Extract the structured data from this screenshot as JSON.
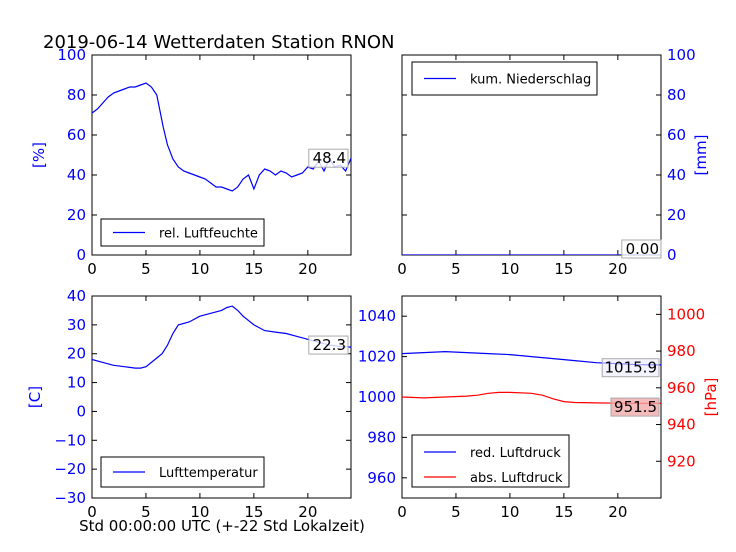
{
  "title": "2019-06-14 Wetterdaten Station RNON",
  "xlabel": "Std 00:00:00 UTC (+-22 Std Lokalzeit)",
  "colors": {
    "blue": "#0000ff",
    "red": "#ff0000",
    "black": "#000000"
  },
  "chart_data": [
    {
      "id": "humidity",
      "type": "line",
      "ylabel": "[%]",
      "xlim": [
        0,
        24
      ],
      "ylim": [
        0,
        100
      ],
      "xticks": [
        0,
        5,
        10,
        15,
        20
      ],
      "yticks": [
        0,
        20,
        40,
        60,
        80,
        100
      ],
      "legend": "rel. Luftfeuchte",
      "last_value": "48.4",
      "series": [
        {
          "name": "rel. Luftfeuchte",
          "color": "#0000ff",
          "x": [
            0,
            0.5,
            1,
            1.5,
            2,
            2.5,
            3,
            3.5,
            4,
            4.5,
            5,
            5.5,
            6,
            6.3,
            6.6,
            7,
            7.5,
            8,
            8.5,
            9,
            9.5,
            10,
            10.5,
            11,
            11.5,
            12,
            12.5,
            13,
            13.5,
            14,
            14.5,
            15,
            15.5,
            16,
            16.5,
            17,
            17.5,
            18,
            18.5,
            19,
            19.5,
            20,
            20.5,
            21,
            21.5,
            22,
            22.5,
            23,
            23.5,
            24
          ],
          "y": [
            71,
            73,
            76,
            79,
            81,
            82,
            83,
            84,
            84,
            85,
            86,
            84,
            80,
            72,
            64,
            55,
            48,
            44,
            42,
            41,
            40,
            39,
            38,
            36,
            34,
            34,
            33,
            32,
            34,
            38,
            40,
            33,
            40,
            43,
            42,
            40,
            42,
            41,
            39,
            40,
            41,
            44,
            43,
            47,
            42,
            48,
            44,
            45,
            42,
            48.4
          ]
        }
      ]
    },
    {
      "id": "precipitation",
      "type": "line",
      "ylabel": "[mm]",
      "xlim": [
        0,
        24
      ],
      "ylim": [
        0,
        100
      ],
      "xticks": [
        0,
        5,
        10,
        15,
        20
      ],
      "yticks": [
        0,
        20,
        40,
        60,
        80,
        100
      ],
      "legend": "kum. Niederschlag",
      "last_value": "0.00",
      "series": [
        {
          "name": "kum. Niederschlag",
          "color": "#0000ff",
          "x": [
            0,
            24
          ],
          "y": [
            0,
            0
          ]
        }
      ]
    },
    {
      "id": "temperature",
      "type": "line",
      "ylabel": "[C]",
      "xlim": [
        0,
        24
      ],
      "ylim": [
        -30,
        40
      ],
      "xticks": [
        0,
        5,
        10,
        15,
        20
      ],
      "yticks": [
        -30,
        -20,
        -10,
        0,
        10,
        20,
        30,
        40
      ],
      "legend": "Lufttemperatur",
      "last_value": "22.3",
      "series": [
        {
          "name": "Lufttemperatur",
          "color": "#0000ff",
          "x": [
            0,
            1,
            2,
            3,
            4,
            4.5,
            5,
            5.5,
            6,
            6.5,
            7,
            7.5,
            8,
            9,
            10,
            11,
            12,
            12.5,
            13,
            13.5,
            14,
            15,
            16,
            17,
            18,
            19,
            20,
            21,
            22,
            23,
            24
          ],
          "y": [
            18,
            17,
            16,
            15.5,
            15,
            15,
            15.5,
            17,
            18.5,
            20,
            23,
            27,
            30,
            31,
            33,
            34,
            35,
            36,
            36.5,
            35,
            33,
            30,
            28,
            27.5,
            27,
            26,
            25,
            24,
            23,
            22.5,
            22.3
          ]
        }
      ]
    },
    {
      "id": "pressure",
      "type": "line",
      "ylabel": "[hPa]",
      "xlim": [
        0,
        24
      ],
      "ylim": [
        950,
        1050
      ],
      "ylim_right": [
        900,
        1010
      ],
      "xticks": [
        0,
        5,
        10,
        15,
        20
      ],
      "yticks": [
        960,
        980,
        1000,
        1020,
        1040
      ],
      "yticks_right": [
        920,
        940,
        960,
        980,
        1000
      ],
      "legend_red": "red. Luftdruck",
      "legend_abs": "abs. Luftdruck",
      "last_value_red": "1015.9",
      "last_value_abs": "951.5",
      "series": [
        {
          "name": "red. Luftdruck",
          "color": "#0000ff",
          "axis": "left",
          "x": [
            0,
            2,
            4,
            6,
            8,
            10,
            12,
            14,
            16,
            18,
            20,
            22,
            24
          ],
          "y": [
            1021.5,
            1022,
            1022.5,
            1022,
            1021.5,
            1021,
            1020,
            1019,
            1018,
            1017,
            1016.5,
            1016,
            1015.9
          ]
        },
        {
          "name": "abs. Luftdruck",
          "color": "#ff0000",
          "axis": "right",
          "x": [
            0,
            2,
            4,
            6,
            7,
            8,
            9,
            10,
            12,
            13,
            14,
            15,
            16,
            18,
            20,
            22,
            24
          ],
          "y": [
            955,
            954.5,
            955,
            955.5,
            956,
            957,
            957.5,
            957.5,
            957,
            956,
            954,
            952.5,
            952,
            951.8,
            951.6,
            951.5,
            951.5
          ]
        }
      ]
    }
  ]
}
